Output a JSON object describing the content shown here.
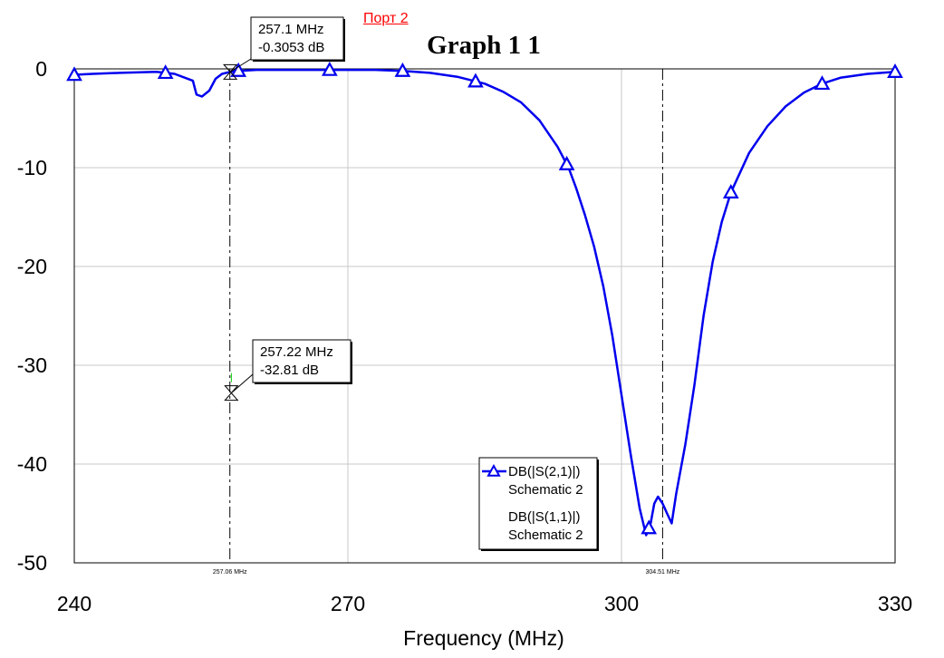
{
  "port_link": "Порт 2",
  "chart_data": {
    "type": "line",
    "title": "Graph 1 1",
    "xlabel": "Frequency (MHz)",
    "ylabel": "",
    "xlim": [
      240,
      330
    ],
    "ylim": [
      -50,
      0
    ],
    "xticks": [
      240,
      270,
      300,
      330
    ],
    "yticks": [
      0,
      -10,
      -20,
      -30,
      -40,
      -50
    ],
    "xtick_labels": [
      "240",
      "270",
      "300",
      "330"
    ],
    "ytick_labels": [
      "0",
      "-10",
      "-20",
      "-30",
      "-40",
      "-50"
    ],
    "grid": true,
    "legend_position": "bottom-right",
    "series": [
      {
        "name": "DB(|S(2,1)|)",
        "subname": "Schematic 2",
        "color": "#0000ee",
        "marker": "triangle",
        "x": [
          240,
          242,
          245,
          249,
          251,
          253,
          253.4,
          254,
          254.8,
          255.5,
          256.2,
          257.1,
          258,
          260,
          264,
          267,
          270,
          273,
          276,
          279,
          282,
          285,
          287,
          289,
          291,
          293,
          294.2,
          295,
          296,
          297,
          298,
          299,
          300,
          301,
          302,
          302.7,
          303.2,
          303.6,
          304,
          304.51,
          305,
          305.5,
          306,
          307,
          308,
          309,
          310,
          311,
          312,
          314,
          316,
          318,
          320,
          322,
          324,
          327,
          330
        ],
        "y": [
          -0.6,
          -0.5,
          -0.4,
          -0.3,
          -0.5,
          -1.2,
          -2.6,
          -2.8,
          -2.2,
          -1.0,
          -0.5,
          -0.305,
          -0.2,
          -0.1,
          -0.1,
          -0.1,
          -0.1,
          -0.1,
          -0.2,
          -0.4,
          -0.8,
          -1.5,
          -2.3,
          -3.4,
          -5.2,
          -7.9,
          -10.0,
          -12.0,
          -14.8,
          -18.0,
          -22.0,
          -27.0,
          -33.0,
          -39.0,
          -44.5,
          -47.2,
          -46.0,
          -44.0,
          -43.3,
          -44.0,
          -45.0,
          -46.0,
          -43.0,
          -38.0,
          -32.0,
          -25.0,
          -19.5,
          -15.5,
          -12.5,
          -8.5,
          -5.8,
          -3.8,
          -2.4,
          -1.5,
          -0.9,
          -0.5,
          -0.3
        ],
        "markers_at": [
          240,
          250,
          258,
          268,
          276,
          284,
          294,
          303,
          312,
          322,
          330
        ]
      },
      {
        "name": "DB(|S(1,1)|)",
        "subname": "Schematic 2",
        "color": "#0000ee",
        "marker": "none",
        "x": [],
        "y": []
      }
    ],
    "markers": [
      {
        "x": 257.06,
        "label": "257.06 MHz"
      },
      {
        "x": 304.51,
        "label": "304.51 MHz"
      }
    ],
    "annotations": [
      {
        "freq": "257.1 MHz",
        "value": "-0.3053 dB",
        "x": 257.1,
        "y": -0.3053
      },
      {
        "freq": "257.22 MHz",
        "value": "-32.81 dB",
        "x": 257.22,
        "y": -32.81
      }
    ]
  }
}
